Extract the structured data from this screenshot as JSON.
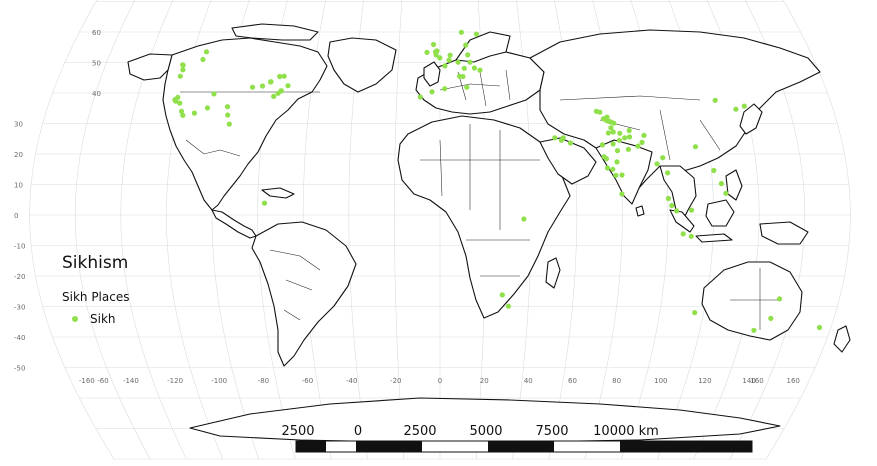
{
  "legend": {
    "title": "Sikhism",
    "subtitle": "Sikh Places",
    "items": [
      {
        "label": "Sikh",
        "color": "#8fe04a"
      }
    ]
  },
  "graticule": {
    "lat_labels": [
      "60",
      "50",
      "40",
      "30",
      "20",
      "10",
      "0",
      "-10",
      "-20",
      "-30",
      "-40",
      "-50"
    ],
    "lon_labels": [
      "-160",
      "-140",
      "-120",
      "-100",
      "-80",
      "-60",
      "-40",
      "-20",
      "0",
      "20",
      "40",
      "60",
      "80",
      "100",
      "120",
      "140",
      "160"
    ],
    "left_edge_label": "-60",
    "right_edge_label": "160"
  },
  "scalebar": {
    "labels": [
      "2500",
      "0",
      "2500",
      "5000",
      "7500",
      "10000 km"
    ]
  },
  "places": [
    [
      -122.4,
      37.8
    ],
    [
      -121.9,
      37.3
    ],
    [
      -121.3,
      38.6
    ],
    [
      -119.8,
      36.7
    ],
    [
      -118.2,
      34.0
    ],
    [
      -117.2,
      32.7
    ],
    [
      -122.7,
      45.5
    ],
    [
      -122.3,
      47.6
    ],
    [
      -123.1,
      49.2
    ],
    [
      -122.8,
      49.1
    ],
    [
      -113.5,
      53.5
    ],
    [
      -114.1,
      51.0
    ],
    [
      -104.9,
      39.7
    ],
    [
      -96.8,
      32.8
    ],
    [
      -95.4,
      29.8
    ],
    [
      -87.6,
      41.9
    ],
    [
      -83.0,
      42.3
    ],
    [
      -79.4,
      43.7
    ],
    [
      -79.6,
      43.6
    ],
    [
      -75.7,
      45.4
    ],
    [
      -73.6,
      45.5
    ],
    [
      -74.0,
      40.7
    ],
    [
      -73.8,
      40.7
    ],
    [
      -77.0,
      38.9
    ],
    [
      -75.2,
      39.9
    ],
    [
      -71.1,
      42.4
    ],
    [
      -106.6,
      35.1
    ],
    [
      -97.5,
      35.5
    ],
    [
      -112.1,
      33.4
    ],
    [
      -77.0,
      3.9
    ],
    [
      -0.1,
      51.5
    ],
    [
      -1.9,
      52.5
    ],
    [
      -2.2,
      53.5
    ],
    [
      -1.5,
      53.8
    ],
    [
      -3.2,
      55.9
    ],
    [
      -6.3,
      53.3
    ],
    [
      2.35,
      48.9
    ],
    [
      4.9,
      52.4
    ],
    [
      4.4,
      50.8
    ],
    [
      8.7,
      50.1
    ],
    [
      11.6,
      48.1
    ],
    [
      13.4,
      52.5
    ],
    [
      16.4,
      48.2
    ],
    [
      9.2,
      45.5
    ],
    [
      12.5,
      41.9
    ],
    [
      10.8,
      45.4
    ],
    [
      -3.7,
      40.4
    ],
    [
      2.2,
      41.4
    ],
    [
      -9.1,
      38.7
    ],
    [
      18.1,
      59.3
    ],
    [
      10.7,
      59.9
    ],
    [
      12.6,
      55.7
    ],
    [
      14.4,
      50.1
    ],
    [
      19.0,
      47.5
    ],
    [
      55.3,
      25.3
    ],
    [
      54.4,
      24.5
    ],
    [
      51.5,
      25.3
    ],
    [
      58.4,
      23.6
    ],
    [
      74.9,
      31.6
    ],
    [
      75.8,
      30.9
    ],
    [
      76.8,
      30.7
    ],
    [
      77.2,
      28.6
    ],
    [
      78.0,
      27.2
    ],
    [
      80.9,
      26.8
    ],
    [
      75.8,
      26.9
    ],
    [
      72.6,
      23.0
    ],
    [
      72.9,
      19.1
    ],
    [
      73.9,
      18.5
    ],
    [
      77.6,
      13.0
    ],
    [
      78.5,
      17.4
    ],
    [
      80.3,
      13.1
    ],
    [
      85.1,
      25.6
    ],
    [
      88.4,
      22.6
    ],
    [
      79.1,
      21.1
    ],
    [
      77.4,
      23.3
    ],
    [
      75.3,
      31.3
    ],
    [
      76.0,
      32.1
    ],
    [
      74.3,
      31.5
    ],
    [
      73.0,
      33.7
    ],
    [
      71.5,
      34.0
    ],
    [
      77.5,
      30.5
    ],
    [
      78.8,
      30.1
    ],
    [
      80.4,
      24.5
    ],
    [
      82.9,
      25.3
    ],
    [
      84.0,
      21.5
    ],
    [
      76.4,
      15.0
    ],
    [
      74.1,
      15.4
    ],
    [
      85.3,
      27.7
    ],
    [
      91.7,
      26.1
    ],
    [
      90.4,
      23.8
    ],
    [
      79.9,
      6.9
    ],
    [
      100.5,
      13.8
    ],
    [
      98.9,
      18.8
    ],
    [
      96.2,
      16.8
    ],
    [
      101.7,
      3.1
    ],
    [
      103.8,
      1.35
    ],
    [
      100.3,
      5.4
    ],
    [
      106.8,
      -6.2
    ],
    [
      110.4,
      -7.0
    ],
    [
      114.1,
      22.4
    ],
    [
      121.0,
      14.6
    ],
    [
      123.9,
      10.3
    ],
    [
      125.6,
      7.1
    ],
    [
      110.3,
      1.6
    ],
    [
      139.7,
      35.7
    ],
    [
      135.5,
      34.7
    ],
    [
      127.0,
      37.6
    ],
    [
      115.9,
      -32.0
    ],
    [
      151.2,
      -33.9
    ],
    [
      144.9,
      -37.8
    ],
    [
      153.0,
      -27.5
    ],
    [
      174.8,
      -36.9
    ],
    [
      36.8,
      -1.3
    ],
    [
      28.0,
      -26.2
    ],
    [
      31.0,
      -29.9
    ]
  ]
}
